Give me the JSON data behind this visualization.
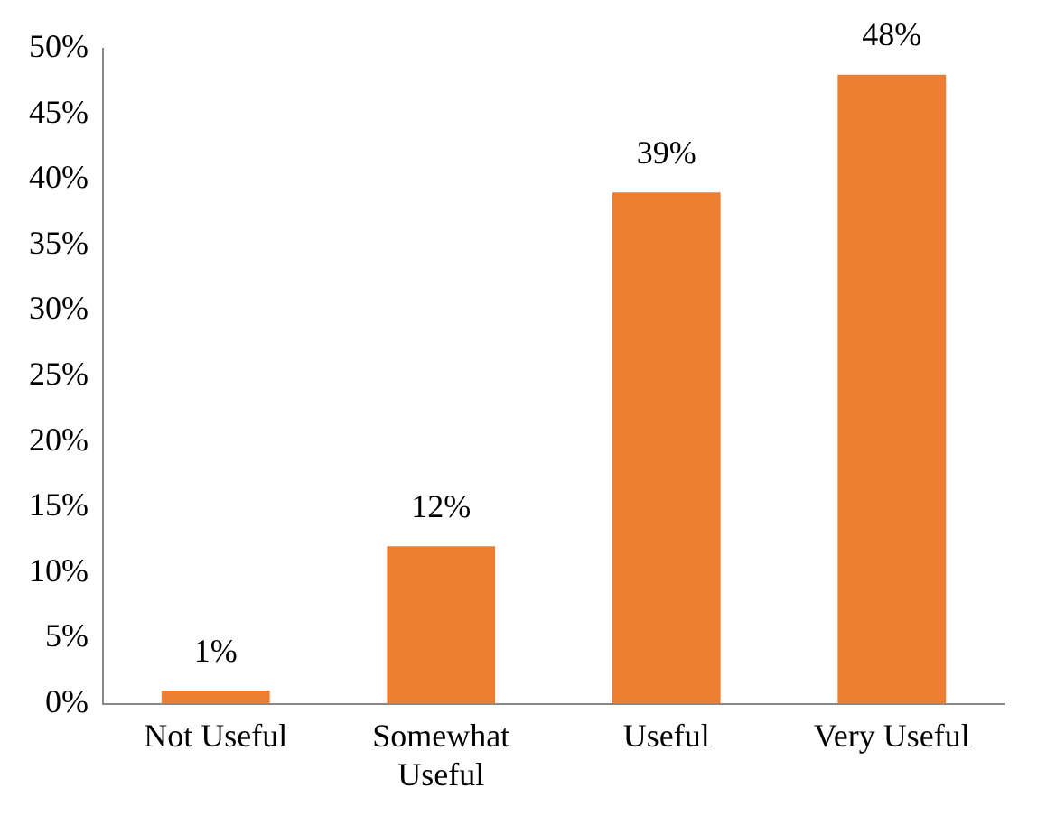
{
  "chart_data": {
    "type": "bar",
    "categories": [
      "Not Useful",
      "Somewhat Useful",
      "Useful",
      "Very Useful"
    ],
    "values": [
      1,
      12,
      39,
      48
    ],
    "color": "#ed7d31",
    "value_labels": [
      "1%",
      "12%",
      "39%",
      "48%"
    ],
    "ylim": [
      0,
      50
    ],
    "yticks": [
      {
        "value": 0,
        "label": "0%"
      },
      {
        "value": 5,
        "label": "5%"
      },
      {
        "value": 10,
        "label": "10%"
      },
      {
        "value": 15,
        "label": "15%"
      },
      {
        "value": 20,
        "label": "20%"
      },
      {
        "value": 25,
        "label": "25%"
      },
      {
        "value": 30,
        "label": "30%"
      },
      {
        "value": 35,
        "label": "35%"
      },
      {
        "value": 40,
        "label": "40%"
      },
      {
        "value": 45,
        "label": "45%"
      },
      {
        "value": 50,
        "label": "50%"
      }
    ],
    "grid": false,
    "legend": false
  }
}
